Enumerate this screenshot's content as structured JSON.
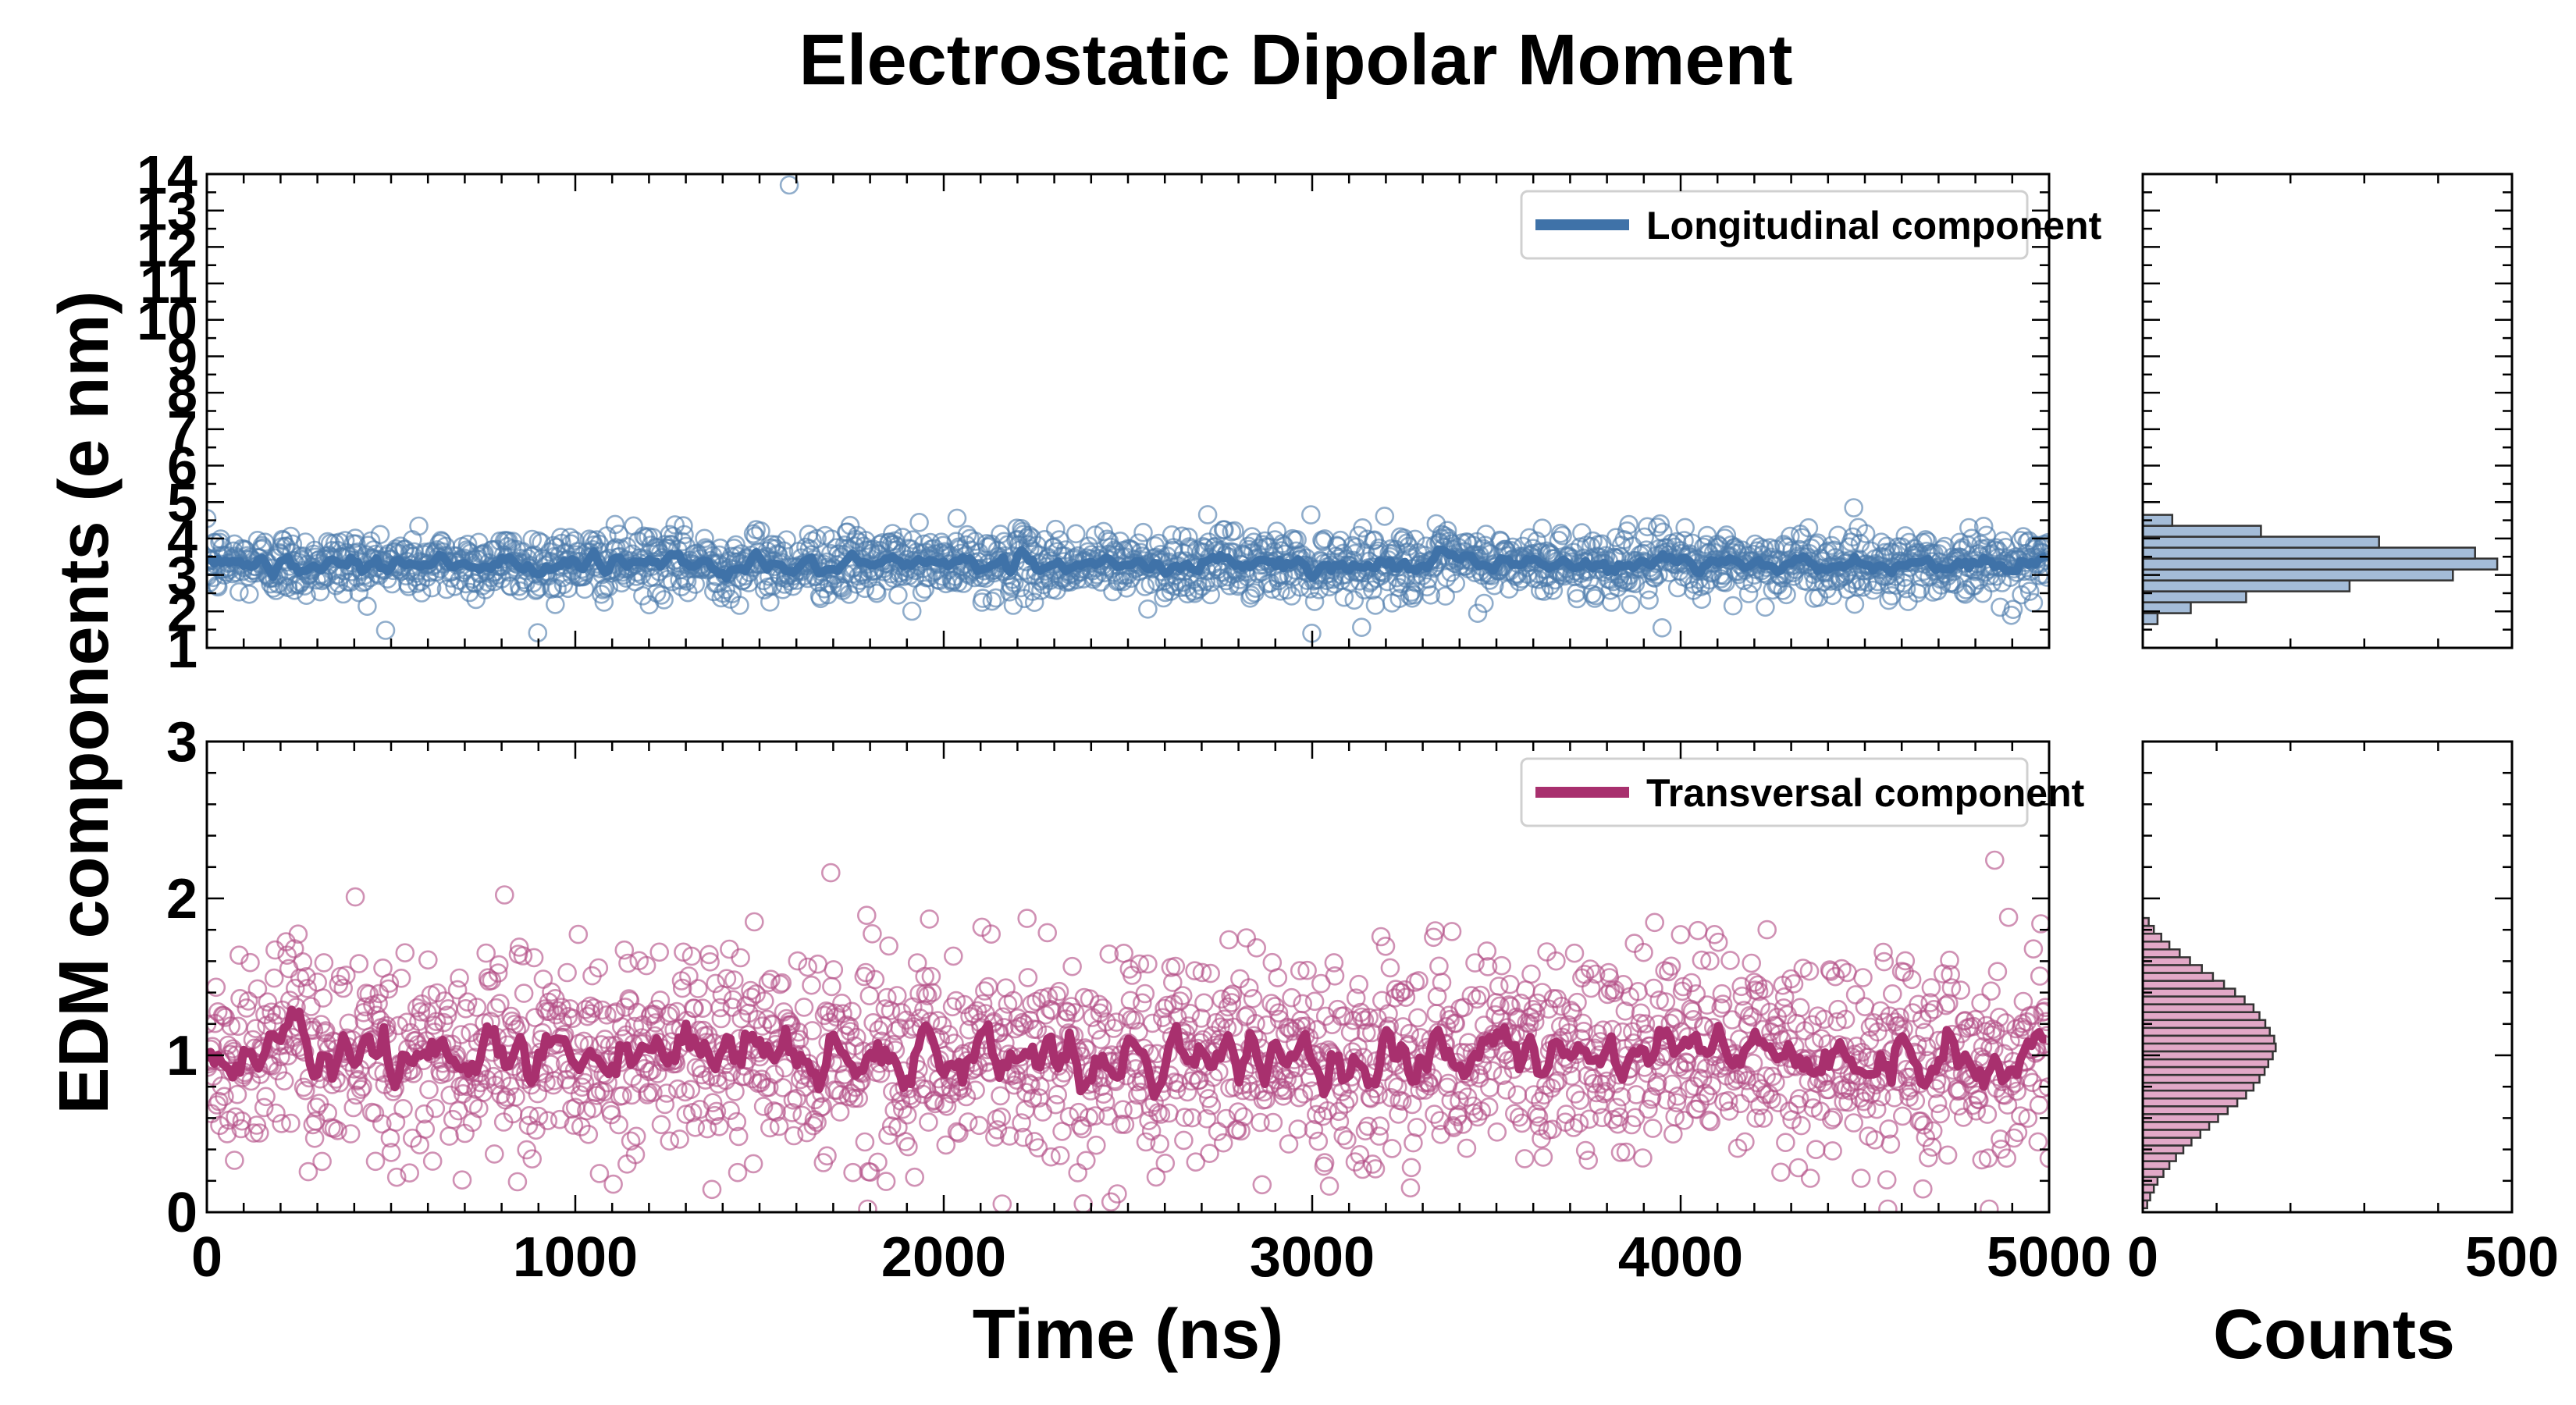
{
  "figure": {
    "title": "Electrostatic Dipolar Moment"
  },
  "chart_data": [
    {
      "type": "scatter",
      "panel": "top-left",
      "title": "Electrostatic Dipolar Moment",
      "xlabel": "Time (ns)",
      "ylabel": "EDM components (e nm)",
      "xlim": [
        0,
        5000
      ],
      "ylim": [
        1,
        14
      ],
      "xticks": [
        0,
        1000,
        2000,
        3000,
        4000,
        5000
      ],
      "yticks": [
        1,
        2,
        3,
        4,
        5,
        6,
        7,
        8,
        9,
        10,
        11,
        12,
        13,
        14
      ],
      "legend": {
        "label": "Longitudinal component",
        "placement": "top-right"
      },
      "series": [
        {
          "name": "Longitudinal component (samples)",
          "style": "hollow-circles",
          "color": "#4c7aab",
          "n_points": 2000,
          "mean": 3.3,
          "std": 0.45
        },
        {
          "name": "Longitudinal component",
          "style": "line",
          "color": "#3f72a8",
          "mean": 3.3,
          "note": "running average"
        }
      ],
      "outliers": [
        {
          "x": 1580,
          "y": 13.7
        },
        {
          "x": 3000,
          "y": 1.4
        },
        {
          "x": 3950,
          "y": 1.55
        }
      ]
    },
    {
      "type": "scatter",
      "panel": "bottom-left",
      "xlabel": "Time (ns)",
      "ylabel": "EDM components (e nm)",
      "xlim": [
        0,
        5000
      ],
      "ylim": [
        0,
        3
      ],
      "xticks": [
        0,
        1000,
        2000,
        3000,
        4000,
        5000
      ],
      "yticks": [
        0,
        1,
        2,
        3
      ],
      "legend": {
        "label": "Transversal component",
        "placement": "top-right"
      },
      "series": [
        {
          "name": "Transversal component (samples)",
          "style": "hollow-circles",
          "color": "#b34d86",
          "n_points": 2000,
          "mean": 1.0,
          "std": 0.33
        },
        {
          "name": "Transversal component",
          "style": "line",
          "color": "#a8306e",
          "mean": 1.0,
          "note": "running average"
        }
      ]
    },
    {
      "type": "bar",
      "orientation": "horizontal",
      "panel": "top-right",
      "xlabel": "Counts",
      "xlim": [
        0,
        500
      ],
      "color": "#a4bcd8",
      "bins": [
        1.8,
        2.1,
        2.4,
        2.7,
        3.0,
        3.3,
        3.6,
        3.9,
        4.2,
        4.5
      ],
      "values": [
        20,
        65,
        140,
        280,
        420,
        480,
        450,
        320,
        160,
        40
      ]
    },
    {
      "type": "bar",
      "orientation": "horizontal",
      "panel": "bottom-right",
      "xlabel": "Counts",
      "xlim": [
        0,
        500
      ],
      "xticks": [
        0,
        500
      ],
      "color": "#e2a8c7",
      "bins": [
        0.05,
        0.1,
        0.15,
        0.2,
        0.25,
        0.3,
        0.35,
        0.4,
        0.45,
        0.5,
        0.55,
        0.6,
        0.65,
        0.7,
        0.75,
        0.8,
        0.85,
        0.9,
        0.95,
        1.0,
        1.05,
        1.1,
        1.15,
        1.2,
        1.25,
        1.3,
        1.35,
        1.4,
        1.45,
        1.5,
        1.55,
        1.6,
        1.65,
        1.7,
        1.75,
        1.8,
        1.85
      ],
      "values": [
        6,
        10,
        15,
        20,
        28,
        36,
        45,
        55,
        66,
        78,
        90,
        102,
        115,
        128,
        140,
        150,
        158,
        165,
        170,
        176,
        180,
        178,
        172,
        166,
        158,
        150,
        138,
        125,
        110,
        95,
        80,
        64,
        50,
        36,
        25,
        15,
        8
      ]
    }
  ]
}
